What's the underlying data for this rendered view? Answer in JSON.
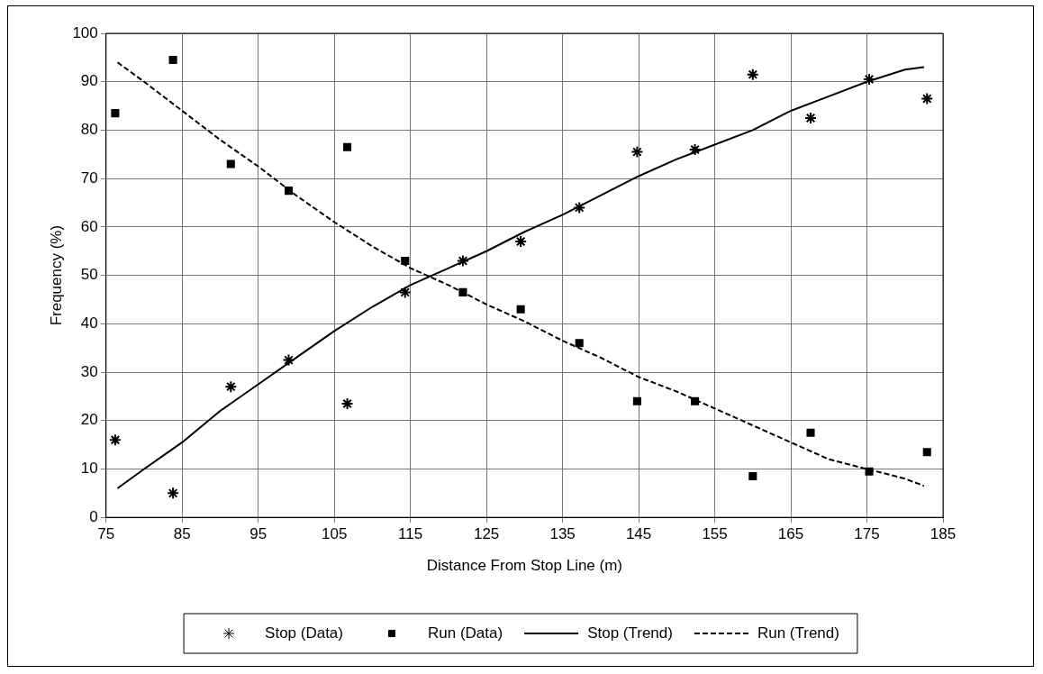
{
  "chart_data": {
    "type": "scatter",
    "xlabel": "Distance From Stop Line (m)",
    "ylabel": "Frequency (%)",
    "xlim": [
      75,
      185
    ],
    "xticks": [
      75,
      85,
      95,
      105,
      115,
      125,
      135,
      145,
      155,
      165,
      175,
      185
    ],
    "ylim": [
      0,
      100
    ],
    "yticks": [
      0,
      10,
      20,
      30,
      40,
      50,
      60,
      70,
      80,
      90,
      100
    ],
    "grid": true,
    "legend": "bottom",
    "series": [
      {
        "name": "Stop (Data)",
        "type": "scatter",
        "marker": "cross",
        "color": "#000000",
        "x": [
          76.2,
          83.8,
          91.4,
          99,
          106.7,
          114.3,
          121.9,
          129.5,
          137.2,
          144.8,
          152.4,
          160,
          167.6,
          175.3,
          182.9
        ],
        "values": [
          16,
          5,
          27,
          32.5,
          23.5,
          46.5,
          53,
          57,
          64,
          75.5,
          76,
          91.5,
          82.5,
          90.5,
          86.5
        ]
      },
      {
        "name": "Run (Data)",
        "type": "scatter",
        "marker": "square",
        "color": "#000000",
        "x": [
          76.2,
          83.8,
          91.4,
          99,
          106.7,
          114.3,
          121.9,
          129.5,
          137.2,
          144.8,
          152.4,
          160,
          167.6,
          175.3,
          182.9
        ],
        "values": [
          83.5,
          94.5,
          73,
          67.5,
          76.5,
          53,
          46.5,
          43,
          36,
          24,
          24,
          8.5,
          17.5,
          9.5,
          13.5
        ]
      },
      {
        "name": "Stop (Trend)",
        "type": "line",
        "marker": "none",
        "line_style": "solid",
        "color": "#000000",
        "x": [
          76.5,
          80,
          85,
          90,
          95,
          100,
          105,
          110,
          115,
          120,
          125,
          130,
          135,
          140,
          145,
          150,
          155,
          160,
          165,
          170,
          175,
          180,
          182.5
        ],
        "values": [
          6,
          10,
          15.5,
          22,
          27.5,
          33,
          38.5,
          43.5,
          48,
          51.5,
          55,
          59,
          62.5,
          66.5,
          70.5,
          74,
          77,
          80,
          84,
          87,
          90,
          92.5,
          93
        ]
      },
      {
        "name": "Run (Trend)",
        "type": "line",
        "marker": "none",
        "line_style": "dashed",
        "color": "#000000",
        "x": [
          76.5,
          80,
          85,
          90,
          95,
          100,
          105,
          110,
          115,
          120,
          125,
          130,
          135,
          140,
          145,
          150,
          155,
          160,
          165,
          170,
          175,
          180,
          182.5
        ],
        "values": [
          94,
          90,
          84,
          78,
          72.5,
          66.5,
          61,
          56,
          51.5,
          48,
          44,
          40.5,
          36.5,
          33,
          29,
          26,
          22.5,
          19,
          15.5,
          12,
          10,
          8,
          6.5
        ]
      }
    ]
  }
}
